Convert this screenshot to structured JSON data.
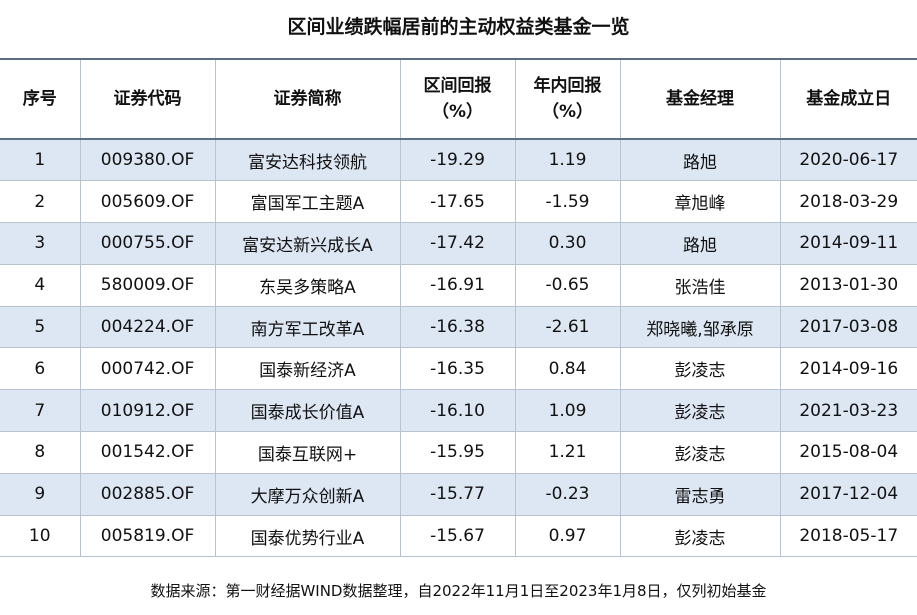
{
  "title": "区间业绩跌幅居前的主动权益类基金一览",
  "table": {
    "header": [
      "序号",
      "证券代码",
      "证券简称",
      "区间回报\n（%）",
      "年内回报\n（%）",
      "基金经理",
      "基金成立日"
    ],
    "rows": [
      [
        "1",
        "009380.OF",
        "富安达科技领航",
        "-19.29",
        "1.19",
        "路旭",
        "2020-06-17"
      ],
      [
        "2",
        "005609.OF",
        "富国军工主题A",
        "-17.65",
        "-1.59",
        "章旭峰",
        "2018-03-29"
      ],
      [
        "3",
        "000755.OF",
        "富安达新兴成长A",
        "-17.42",
        "0.30",
        "路旭",
        "2014-09-11"
      ],
      [
        "4",
        "580009.OF",
        "东吴多策略A",
        "-16.91",
        "-0.65",
        "张浩佳",
        "2013-01-30"
      ],
      [
        "5",
        "004224.OF",
        "南方军工改革A",
        "-16.38",
        "-2.61",
        "郑晓曦,邹承原",
        "2017-03-08"
      ],
      [
        "6",
        "000742.OF",
        "国泰新经济A",
        "-16.35",
        "0.84",
        "彭凌志",
        "2014-09-16"
      ],
      [
        "7",
        "010912.OF",
        "国泰成长价值A",
        "-16.10",
        "1.09",
        "彭凌志",
        "2021-03-23"
      ],
      [
        "8",
        "001542.OF",
        "国泰互联网+",
        "-15.95",
        "1.21",
        "彭凌志",
        "2015-08-04"
      ],
      [
        "9",
        "002885.OF",
        "大摩万众创新A",
        "-15.77",
        "-0.23",
        "雷志勇",
        "2017-12-04"
      ],
      [
        "10",
        "005819.OF",
        "国泰优势行业A",
        "-15.67",
        "0.97",
        "彭凌志",
        "2018-05-17"
      ]
    ]
  },
  "footer": "数据来源：第一财经据WIND数据整理，自2022年11月1日至2023年1月8日，仅列初始基金"
}
